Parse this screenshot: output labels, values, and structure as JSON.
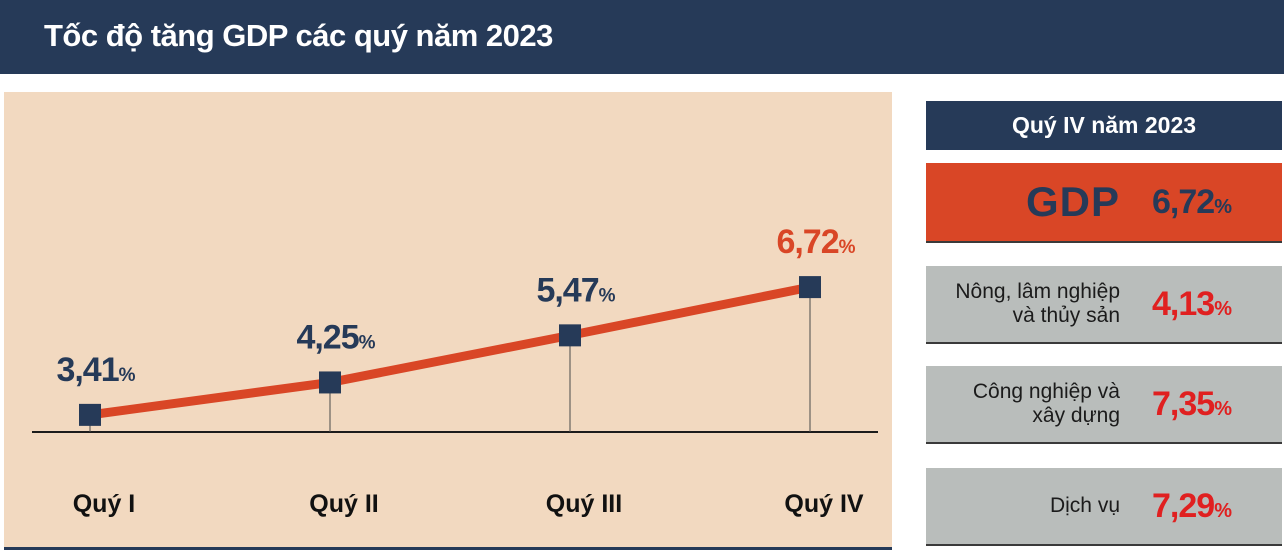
{
  "header": {
    "title": "Tốc độ tăng GDP các quý năm 2023"
  },
  "colors": {
    "header_bg": "#263a58",
    "chart_bg": "#f2d9c0",
    "line": "#d94626",
    "marker": "#263a58",
    "highlight_label": "#d94626",
    "card_gdp_bg": "#d94626",
    "card_sector_bg": "#b9bdbb"
  },
  "chart_data": {
    "type": "line",
    "title": "Tốc độ tăng GDP các quý năm 2023",
    "categories": [
      "Quý I",
      "Quý II",
      "Quý III",
      "Quý IV"
    ],
    "values": [
      3.41,
      4.25,
      5.47,
      6.72
    ],
    "value_labels": [
      "3,41",
      "4,25",
      "5,47",
      "6,72"
    ],
    "unit": "%",
    "highlight_index": 3,
    "ylim": [
      0,
      8
    ],
    "grid": false,
    "xlabel": "",
    "ylabel": ""
  },
  "side": {
    "header": "Quý IV năm 2023",
    "gdp": {
      "label": "GDP",
      "value": "6,72",
      "unit": "%"
    },
    "sectors": [
      {
        "label_lines": [
          "Nông, lâm nghiệp",
          "và thủy sản"
        ],
        "value": "4,13",
        "unit": "%"
      },
      {
        "label_lines": [
          "Công nghiệp và",
          "xây dựng"
        ],
        "value": "7,35",
        "unit": "%"
      },
      {
        "label_lines": [
          "Dịch vụ"
        ],
        "value": "7,29",
        "unit": "%"
      }
    ]
  }
}
